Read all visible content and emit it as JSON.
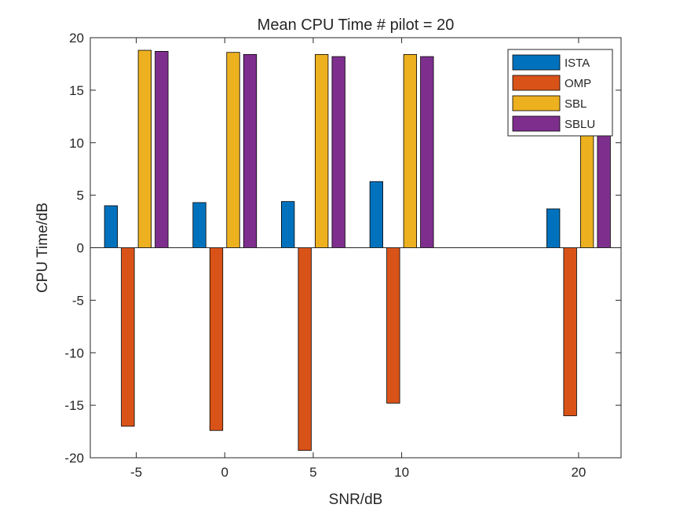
{
  "chart_data": {
    "type": "bar",
    "title": "Mean CPU Time # pilot = 20",
    "xlabel": "SNR/dB",
    "ylabel": "CPU Time/dB",
    "x": [
      -5,
      0,
      5,
      10,
      20
    ],
    "categories": [
      "-5",
      "0",
      "5",
      "10",
      "20"
    ],
    "xlim": [
      -7.6,
      22.4
    ],
    "ylim": [
      -20,
      20
    ],
    "yticks": [
      -20,
      -15,
      -10,
      -5,
      0,
      5,
      10,
      15,
      20
    ],
    "legend_position": "top-right",
    "grid": false,
    "series": [
      {
        "name": "ISTA",
        "color": "#0072BD",
        "values": [
          4.0,
          4.3,
          4.4,
          6.3,
          3.7
        ]
      },
      {
        "name": "OMP",
        "color": "#D95319",
        "values": [
          -17.0,
          -17.4,
          -19.3,
          -14.8,
          -16.0
        ]
      },
      {
        "name": "SBL",
        "color": "#EDB120",
        "values": [
          18.8,
          18.6,
          18.4,
          18.4,
          18.4
        ]
      },
      {
        "name": "SBLU",
        "color": "#7E2F8E",
        "values": [
          18.7,
          18.4,
          18.2,
          18.2,
          18.2
        ]
      }
    ]
  }
}
